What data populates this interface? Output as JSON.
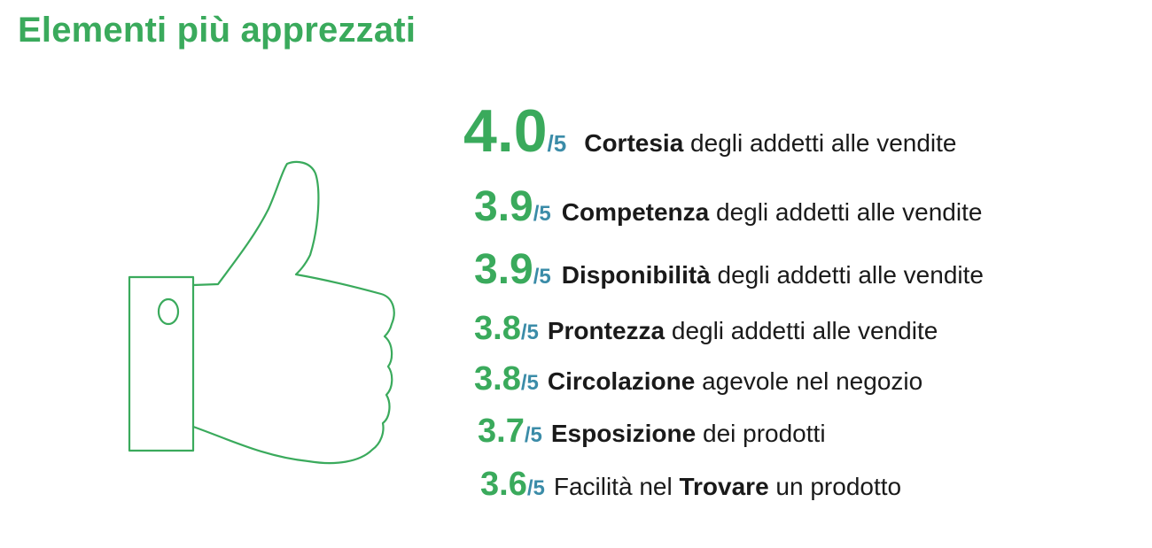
{
  "title": "Elementi più apprezzati",
  "accent_color": "#3aaa5c",
  "denominator_color": "#3b8ca8",
  "icon": "thumbs-up-icon",
  "items": [
    {
      "score": "4.0",
      "denominator": "/5",
      "pre": "",
      "bold": "Cortesia",
      "post": " degli addetti alle vendite"
    },
    {
      "score": "3.9",
      "denominator": "/5",
      "pre": "",
      "bold": "Competenza",
      "post": " degli addetti alle vendite"
    },
    {
      "score": "3.9",
      "denominator": "/5",
      "pre": "",
      "bold": "Disponibilità",
      "post": " degli addetti alle vendite"
    },
    {
      "score": "3.8",
      "denominator": "/5",
      "pre": "",
      "bold": "Prontezza",
      "post": " degli addetti alle vendite"
    },
    {
      "score": "3.8",
      "denominator": "/5",
      "pre": "",
      "bold": "Circolazione",
      "post": " agevole nel negozio"
    },
    {
      "score": "3.7",
      "denominator": "/5",
      "pre": "",
      "bold": "Esposizione",
      "post": " dei prodotti"
    },
    {
      "score": "3.6",
      "denominator": "/5",
      "pre": "Facilità nel ",
      "bold": "Trovare",
      "post": " un prodotto"
    }
  ]
}
